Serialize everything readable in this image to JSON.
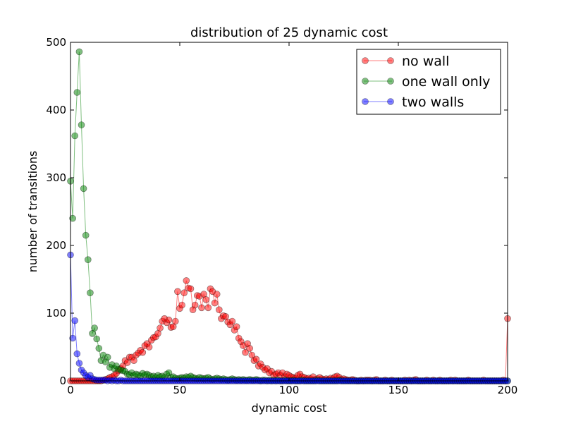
{
  "chart_data": {
    "type": "line",
    "title": "distribution of 25 dynamic cost",
    "xlabel": "dynamic cost",
    "ylabel": "number of transitions",
    "xlim": [
      0,
      200
    ],
    "ylim": [
      0,
      500
    ],
    "xticks": [
      0,
      50,
      100,
      150,
      200
    ],
    "yticks": [
      0,
      100,
      200,
      300,
      400,
      500
    ],
    "grid": false,
    "legend_position": "top-right",
    "marker": "circle",
    "series": [
      {
        "name": "no wall",
        "color": "#ff0000",
        "x": [
          0,
          1,
          2,
          3,
          4,
          5,
          6,
          7,
          8,
          9,
          10,
          11,
          12,
          13,
          14,
          15,
          16,
          17,
          18,
          19,
          20,
          21,
          22,
          23,
          24,
          25,
          26,
          27,
          28,
          29,
          30,
          31,
          32,
          33,
          34,
          35,
          36,
          37,
          38,
          39,
          40,
          41,
          42,
          43,
          44,
          45,
          46,
          47,
          48,
          49,
          50,
          51,
          52,
          53,
          54,
          55,
          56,
          57,
          58,
          59,
          60,
          61,
          62,
          63,
          64,
          65,
          66,
          67,
          68,
          69,
          70,
          71,
          72,
          73,
          74,
          75,
          76,
          77,
          78,
          79,
          80,
          81,
          82,
          83,
          84,
          85,
          86,
          87,
          88,
          89,
          90,
          91,
          92,
          93,
          94,
          95,
          96,
          97,
          98,
          99,
          100,
          101,
          102,
          103,
          104,
          105,
          106,
          107,
          108,
          109,
          110,
          111,
          112,
          113,
          114,
          115,
          116,
          117,
          118,
          119,
          120,
          121,
          122,
          123,
          124,
          125,
          126,
          127,
          128,
          129,
          130,
          131,
          132,
          133,
          134,
          135,
          136,
          137,
          138,
          139,
          140,
          141,
          142,
          143,
          144,
          145,
          146,
          147,
          148,
          149,
          150,
          151,
          152,
          153,
          154,
          155,
          156,
          157,
          158,
          159,
          160,
          161,
          162,
          163,
          164,
          165,
          166,
          167,
          168,
          169,
          170,
          171,
          172,
          173,
          174,
          175,
          176,
          177,
          178,
          179,
          180,
          181,
          182,
          183,
          184,
          185,
          186,
          187,
          188,
          189,
          190,
          191,
          192,
          193,
          194,
          195,
          196,
          197,
          198,
          199,
          200
        ],
        "y": [
          0,
          0,
          0,
          0,
          0,
          0,
          0,
          0,
          0,
          0,
          0,
          0,
          0,
          0,
          0,
          1,
          2,
          3,
          5,
          6,
          8,
          11,
          15,
          18,
          22,
          30,
          27,
          35,
          35,
          30,
          38,
          41,
          45,
          42,
          52,
          55,
          50,
          60,
          64,
          65,
          70,
          78,
          88,
          92,
          86,
          90,
          79,
          80,
          88,
          132,
          107,
          112,
          130,
          148,
          137,
          136,
          105,
          112,
          126,
          125,
          108,
          128,
          120,
          108,
          136,
          132,
          115,
          128,
          105,
          92,
          96,
          95,
          87,
          83,
          88,
          75,
          80,
          63,
          58,
          52,
          42,
          55,
          48,
          38,
          30,
          32,
          22,
          25,
          20,
          16,
          18,
          12,
          14,
          8,
          10,
          12,
          8,
          12,
          6,
          10,
          8,
          6,
          5,
          4,
          8,
          10,
          6,
          5,
          3,
          4,
          3,
          6,
          2,
          3,
          5,
          3,
          2,
          3,
          2,
          4,
          3,
          6,
          7,
          5,
          2,
          3,
          2,
          1,
          1,
          2,
          1,
          0,
          0,
          1,
          0,
          1,
          1,
          1,
          0,
          1,
          2,
          0,
          0,
          0,
          1,
          0,
          0,
          1,
          0,
          0,
          0,
          0,
          0,
          1,
          0,
          1,
          0,
          1,
          2,
          0,
          0,
          0,
          0,
          1,
          0,
          0,
          1,
          0,
          0,
          1,
          0,
          0,
          0,
          0,
          1,
          0,
          1,
          0,
          0,
          0,
          0,
          0,
          1,
          0,
          0,
          0,
          0,
          0,
          0,
          1,
          0,
          0,
          0,
          0,
          0,
          0,
          0,
          0,
          1,
          0,
          92
        ]
      },
      {
        "name": "one wall only",
        "color": "#008000",
        "x": [
          0,
          1,
          2,
          3,
          4,
          5,
          6,
          7,
          8,
          9,
          10,
          11,
          12,
          13,
          14,
          15,
          16,
          17,
          18,
          19,
          20,
          21,
          22,
          23,
          24,
          25,
          26,
          27,
          28,
          29,
          30,
          31,
          32,
          33,
          34,
          35,
          36,
          37,
          38,
          39,
          40,
          41,
          42,
          43,
          44,
          45,
          46,
          47,
          48,
          49,
          50,
          51,
          52,
          53,
          54,
          55,
          56,
          57,
          58,
          59,
          60,
          61,
          62,
          63,
          64,
          65,
          66,
          67,
          68,
          69,
          70,
          71,
          72,
          73,
          74,
          75,
          76,
          77,
          78,
          79,
          80,
          81,
          82,
          83,
          84,
          85,
          86,
          87,
          88,
          89,
          90,
          91,
          92,
          93,
          94,
          95,
          96,
          97,
          98,
          99,
          100,
          101,
          102,
          103,
          104,
          105,
          106,
          107,
          108,
          109,
          110,
          111,
          112,
          113,
          114,
          115,
          116,
          117,
          118,
          119,
          120,
          121,
          122,
          123,
          124,
          125,
          126,
          127,
          128,
          129,
          130,
          131,
          132,
          133,
          134,
          135,
          136,
          137,
          138,
          139,
          140,
          141,
          142,
          143,
          144,
          145,
          146,
          147,
          148,
          149,
          150,
          151,
          152,
          153,
          154,
          155,
          156,
          157,
          158,
          159,
          160,
          161,
          162,
          163,
          164,
          165,
          166,
          167,
          168,
          169,
          170,
          171,
          172,
          173,
          174,
          175,
          176,
          177,
          178,
          179,
          180,
          181,
          182,
          183,
          184,
          185,
          186,
          187,
          188,
          189,
          190,
          191,
          192,
          193,
          194,
          195,
          196,
          197,
          198,
          199,
          200
        ],
        "y": [
          295,
          240,
          362,
          426,
          486,
          378,
          284,
          215,
          179,
          130,
          70,
          78,
          62,
          48,
          30,
          38,
          28,
          35,
          20,
          24,
          18,
          22,
          17,
          16,
          15,
          14,
          10,
          9,
          12,
          8,
          10,
          9,
          7,
          11,
          9,
          10,
          8,
          6,
          7,
          5,
          8,
          6,
          7,
          5,
          10,
          12,
          5,
          6,
          4,
          3,
          4,
          5,
          4,
          6,
          5,
          7,
          5,
          4,
          3,
          5,
          4,
          3,
          4,
          5,
          3,
          2,
          3,
          4,
          3,
          2,
          3,
          2,
          1,
          2,
          3,
          2,
          1,
          2,
          1,
          2,
          1,
          1,
          2,
          1,
          1,
          2,
          1,
          0,
          1,
          1,
          0,
          1,
          0,
          1,
          0,
          1,
          0,
          0,
          1,
          0,
          0,
          0,
          1,
          0,
          0,
          0,
          1,
          0,
          0,
          0,
          0,
          0,
          0,
          1,
          0,
          0,
          0,
          0,
          0,
          0,
          0,
          0,
          0,
          1,
          0,
          0,
          0,
          0,
          0,
          0,
          0,
          0,
          0,
          0,
          0,
          0,
          0,
          0,
          0,
          0,
          0,
          0,
          0,
          0,
          0,
          0,
          0,
          0,
          0,
          0,
          0,
          0,
          0,
          0,
          0,
          0,
          0,
          0,
          0,
          0,
          0,
          0,
          0,
          0,
          0,
          0,
          0,
          0,
          0,
          0,
          0,
          0,
          0,
          0,
          0,
          0,
          0,
          0,
          0,
          0,
          0,
          0,
          0,
          0,
          0,
          0,
          0,
          0,
          0,
          0,
          0,
          0,
          0,
          0,
          0,
          0,
          0,
          0,
          0,
          0,
          0
        ]
      },
      {
        "name": "two walls",
        "color": "#0000ff",
        "x": [
          0,
          1,
          2,
          3,
          4,
          5,
          6,
          7,
          8,
          9,
          10,
          11,
          12,
          13,
          14,
          15,
          16,
          17,
          18,
          19,
          20,
          21,
          22,
          23,
          24,
          25,
          26,
          27,
          28,
          29,
          30,
          31,
          32,
          33,
          34,
          35,
          36,
          37,
          38,
          39,
          40,
          41,
          42,
          43,
          44,
          45,
          46,
          47,
          48,
          49,
          50,
          51,
          52,
          53,
          54,
          55,
          56,
          57,
          58,
          59,
          60,
          61,
          62,
          63,
          64,
          65,
          66,
          67,
          68,
          69,
          70,
          71,
          72,
          73,
          74,
          75,
          76,
          77,
          78,
          79,
          80,
          81,
          82,
          83,
          84,
          85,
          86,
          87,
          88,
          89,
          90,
          91,
          92,
          93,
          94,
          95,
          96,
          97,
          98,
          99,
          100,
          101,
          102,
          103,
          104,
          105,
          106,
          107,
          108,
          109,
          110,
          111,
          112,
          113,
          114,
          115,
          116,
          117,
          118,
          119,
          120,
          121,
          122,
          123,
          124,
          125,
          126,
          127,
          128,
          129,
          130,
          131,
          132,
          133,
          134,
          135,
          136,
          137,
          138,
          139,
          140,
          141,
          142,
          143,
          144,
          145,
          146,
          147,
          148,
          149,
          150,
          151,
          152,
          153,
          154,
          155,
          156,
          157,
          158,
          159,
          160,
          161,
          162,
          163,
          164,
          165,
          166,
          167,
          168,
          169,
          170,
          171,
          172,
          173,
          174,
          175,
          176,
          177,
          178,
          179,
          180,
          181,
          182,
          183,
          184,
          185,
          186,
          187,
          188,
          189,
          190,
          191,
          192,
          193,
          194,
          195,
          196,
          197,
          198,
          199,
          200
        ],
        "y": [
          186,
          63,
          89,
          40,
          26,
          16,
          12,
          8,
          5,
          8,
          3,
          2,
          1,
          1,
          1,
          1,
          1,
          0,
          1,
          0,
          1,
          0,
          0,
          1,
          0,
          0,
          0,
          0,
          0,
          0,
          0,
          0,
          0,
          0,
          0,
          0,
          0,
          0,
          0,
          0,
          0,
          0,
          0,
          0,
          0,
          0,
          0,
          0,
          0,
          0,
          0,
          0,
          0,
          0,
          0,
          0,
          0,
          0,
          0,
          0,
          0,
          0,
          0,
          0,
          0,
          0,
          0,
          0,
          0,
          0,
          0,
          0,
          0,
          0,
          0,
          0,
          0,
          0,
          0,
          0,
          0,
          0,
          0,
          0,
          0,
          0,
          0,
          0,
          0,
          0,
          0,
          0,
          0,
          0,
          0,
          0,
          0,
          0,
          0,
          0,
          0,
          0,
          0,
          0,
          0,
          0,
          0,
          0,
          0,
          0,
          0,
          0,
          0,
          0,
          0,
          0,
          0,
          0,
          0,
          0,
          0,
          0,
          0,
          0,
          0,
          0,
          0,
          0,
          0,
          0,
          0,
          0,
          0,
          0,
          0,
          0,
          0,
          0,
          0,
          0,
          0,
          0,
          0,
          0,
          0,
          0,
          0,
          0,
          0,
          0,
          0,
          0,
          0,
          0,
          0,
          0,
          0,
          0,
          0,
          0,
          0,
          0,
          0,
          0,
          0,
          0,
          0,
          0,
          0,
          0,
          0,
          0,
          0,
          0,
          0,
          0,
          0,
          0,
          0,
          0,
          0,
          0,
          0,
          0,
          0,
          0,
          0,
          0,
          0,
          0,
          0,
          0,
          0,
          0,
          0,
          0,
          0,
          0,
          0,
          0,
          0
        ]
      }
    ]
  }
}
